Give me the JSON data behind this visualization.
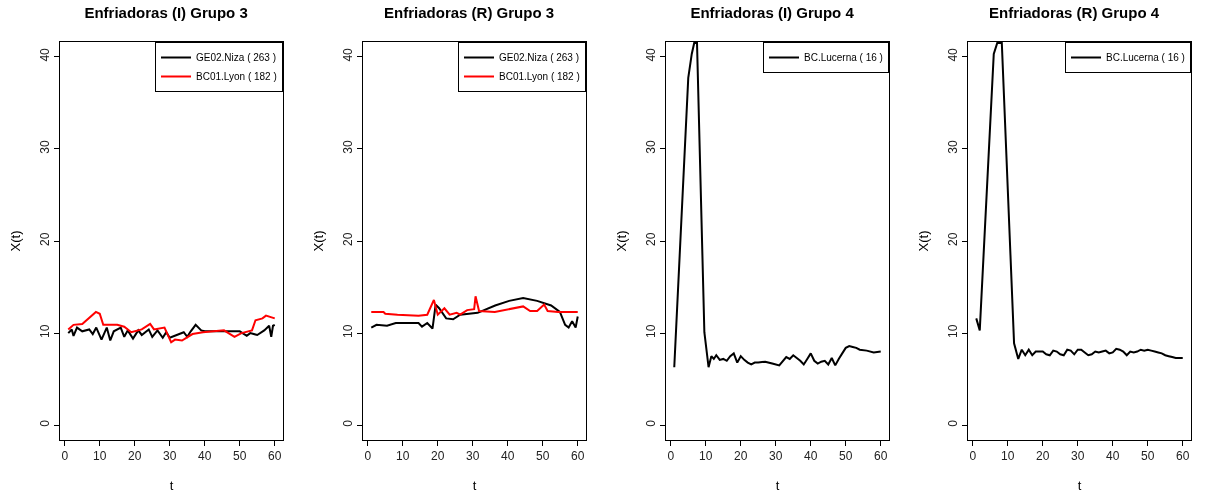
{
  "chart_data": [
    {
      "type": "line",
      "title": "Enfriadoras (I) Grupo 3",
      "xlabel": "t",
      "ylabel": "X(t)",
      "xlim": [
        -1.36,
        62.36
      ],
      "ylim": [
        -1.6,
        41.6
      ],
      "xticks": [
        0,
        10,
        20,
        30,
        40,
        50,
        60
      ],
      "yticks": [
        0,
        10,
        20,
        30,
        40
      ],
      "legend": "top right",
      "series": [
        {
          "name": "GE02.Niza ( 263 )",
          "color": "#000000",
          "x": [
            1,
            2,
            2.5,
            3.5,
            5,
            7,
            8,
            9,
            10.5,
            12,
            13,
            14,
            16,
            17,
            18,
            19.5,
            21,
            22,
            24,
            25,
            26.5,
            28,
            29,
            30,
            32,
            34,
            35,
            36,
            37.4,
            39,
            40,
            45,
            50,
            52,
            53,
            55,
            57,
            58.4,
            59,
            59.5,
            60
          ],
          "values": [
            10.0,
            10.4,
            9.7,
            10.6,
            10.2,
            10.4,
            9.9,
            10.6,
            9.3,
            10.6,
            9.2,
            10.2,
            10.6,
            9.6,
            10.3,
            9.4,
            10.3,
            9.8,
            10.4,
            9.6,
            10.3,
            9.5,
            10.1,
            9.5,
            9.8,
            10.1,
            9.6,
            10.2,
            10.9,
            10.3,
            10.2,
            10.2,
            10.2,
            9.7,
            10.0,
            9.8,
            10.3,
            10.8,
            9.6,
            10.8,
            10.9
          ]
        },
        {
          "name": "BC01.Lyon ( 182 )",
          "color": "#ff0000",
          "x": [
            1,
            2.5,
            5,
            8.9,
            10,
            11,
            15,
            17,
            19,
            22,
            24.4,
            25.5,
            28.5,
            30.4,
            31.5,
            33.5,
            36.5,
            39.5,
            45.5,
            48.5,
            50.5,
            53.5,
            54.5,
            56.5,
            57.5,
            60
          ],
          "values": [
            10.4,
            10.9,
            11.0,
            12.3,
            12.1,
            10.9,
            10.9,
            10.7,
            10.1,
            10.4,
            11.0,
            10.4,
            10.6,
            9.0,
            9.3,
            9.2,
            9.9,
            10.1,
            10.3,
            9.6,
            10.0,
            10.3,
            11.4,
            11.6,
            11.9,
            11.6
          ]
        }
      ]
    },
    {
      "type": "line",
      "title": "Enfriadoras (R) Grupo 3",
      "xlabel": "t",
      "ylabel": "X(t)",
      "xlim": [
        -1.36,
        62.36
      ],
      "ylim": [
        -1.6,
        41.6
      ],
      "xticks": [
        0,
        10,
        20,
        30,
        40,
        50,
        60
      ],
      "yticks": [
        0,
        10,
        20,
        30,
        40
      ],
      "legend": "top right",
      "series": [
        {
          "name": "GE02.Niza ( 263 )",
          "color": "#000000",
          "x": [
            1,
            2.5,
            5.5,
            8,
            14.5,
            15.5,
            17,
            18.5,
            19.4,
            20.4,
            22.4,
            24.4,
            26.4,
            31.4,
            36.4,
            40.4,
            44.4,
            48.4,
            52.4,
            54.9,
            56.4,
            57.4,
            58.4,
            59.4,
            60
          ],
          "values": [
            10.6,
            10.9,
            10.8,
            11.1,
            11.1,
            10.7,
            11.1,
            10.5,
            13.1,
            12.7,
            11.6,
            11.5,
            12.0,
            12.2,
            13.0,
            13.5,
            13.8,
            13.5,
            13.0,
            12.3,
            10.9,
            10.6,
            11.3,
            10.6,
            11.8
          ]
        },
        {
          "name": "BC01.Lyon ( 182 )",
          "color": "#ff0000",
          "x": [
            1,
            4.5,
            5,
            8.5,
            14.5,
            17,
            18.9,
            20,
            21.9,
            23.4,
            25.4,
            26.4,
            28.4,
            30.4,
            30.8,
            31.8,
            36.3,
            44.4,
            46.4,
            48.4,
            50.4,
            51.4,
            54.4,
            60
          ],
          "values": [
            12.3,
            12.3,
            12.1,
            12.0,
            11.9,
            12.0,
            13.6,
            12.0,
            12.7,
            12.0,
            12.2,
            12.0,
            12.5,
            12.6,
            14.0,
            12.4,
            12.3,
            12.9,
            12.4,
            12.4,
            13.1,
            12.4,
            12.3,
            12.3
          ]
        }
      ]
    },
    {
      "type": "line",
      "title": "Enfriadoras (I) Grupo 4",
      "xlabel": "t",
      "ylabel": "X(t)",
      "xlim": [
        -1.36,
        62.36
      ],
      "ylim": [
        -1.6,
        41.6
      ],
      "xticks": [
        0,
        10,
        20,
        30,
        40,
        50,
        60
      ],
      "yticks": [
        0,
        10,
        20,
        30,
        40
      ],
      "legend": "top right",
      "series": [
        {
          "name": "BC.Lucerna ( 16 )",
          "color": "#000000",
          "x": [
            1,
            5,
            6,
            6.7,
            7.5,
            9.6,
            10.8,
            11.6,
            12.3,
            13,
            14,
            15,
            16,
            17,
            18,
            19,
            20,
            21,
            22,
            23,
            24,
            25,
            27,
            29,
            31,
            33,
            34,
            35,
            36,
            37,
            38,
            39,
            40,
            41,
            42,
            43,
            44,
            45,
            46,
            47,
            48,
            49,
            50,
            51,
            52,
            53,
            54,
            56,
            58,
            60
          ],
          "values": [
            6.3,
            37.7,
            40.3,
            41.5,
            41.5,
            10.1,
            6.3,
            7.5,
            7.2,
            7.6,
            7.1,
            7.2,
            7.0,
            7.5,
            7.8,
            6.8,
            7.5,
            7.1,
            6.8,
            6.6,
            6.8,
            6.8,
            6.9,
            6.7,
            6.5,
            7.4,
            7.2,
            7.6,
            7.3,
            7.0,
            6.6,
            7.2,
            7.8,
            7.0,
            6.7,
            6.9,
            7.0,
            6.6,
            7.3,
            6.5,
            7.2,
            7.8,
            8.4,
            8.6,
            8.5,
            8.4,
            8.2,
            8.1,
            7.9,
            8.0
          ]
        }
      ]
    },
    {
      "type": "line",
      "title": "Enfriadoras (R) Grupo 4",
      "xlabel": "t",
      "ylabel": "X(t)",
      "xlim": [
        -1.36,
        62.36
      ],
      "ylim": [
        -1.6,
        41.6
      ],
      "xticks": [
        0,
        10,
        20,
        30,
        40,
        50,
        60
      ],
      "yticks": [
        0,
        10,
        20,
        30,
        40
      ],
      "legend": "top right",
      "series": [
        {
          "name": "BC.Lucerna ( 16 )",
          "color": "#000000",
          "x": [
            1,
            2,
            6,
            7,
            8.3,
            11.8,
            13,
            14,
            15,
            16,
            17,
            18,
            19,
            20,
            21,
            22,
            23,
            24,
            25,
            26,
            27,
            28,
            29,
            30,
            31,
            32,
            33,
            34,
            35,
            36,
            37,
            38,
            39,
            40,
            41,
            42,
            43,
            44,
            45,
            46,
            47,
            48,
            49,
            50,
            51,
            52,
            53,
            54,
            55,
            56,
            57,
            58,
            59,
            60
          ],
          "values": [
            11.6,
            10.3,
            40.3,
            41.5,
            41.5,
            8.9,
            7.2,
            8.2,
            7.6,
            8.2,
            7.6,
            8.0,
            8.0,
            8.0,
            7.7,
            7.6,
            8.1,
            8.0,
            7.7,
            7.6,
            8.2,
            8.1,
            7.7,
            8.2,
            8.2,
            7.9,
            7.6,
            7.7,
            8.0,
            7.9,
            8.0,
            8.1,
            7.8,
            7.9,
            8.3,
            8.2,
            8.0,
            7.6,
            8.0,
            7.9,
            8.0,
            8.2,
            8.1,
            8.2,
            8.1,
            8.0,
            7.9,
            7.8,
            7.6,
            7.5,
            7.4,
            7.3,
            7.3,
            7.3
          ]
        }
      ]
    }
  ]
}
